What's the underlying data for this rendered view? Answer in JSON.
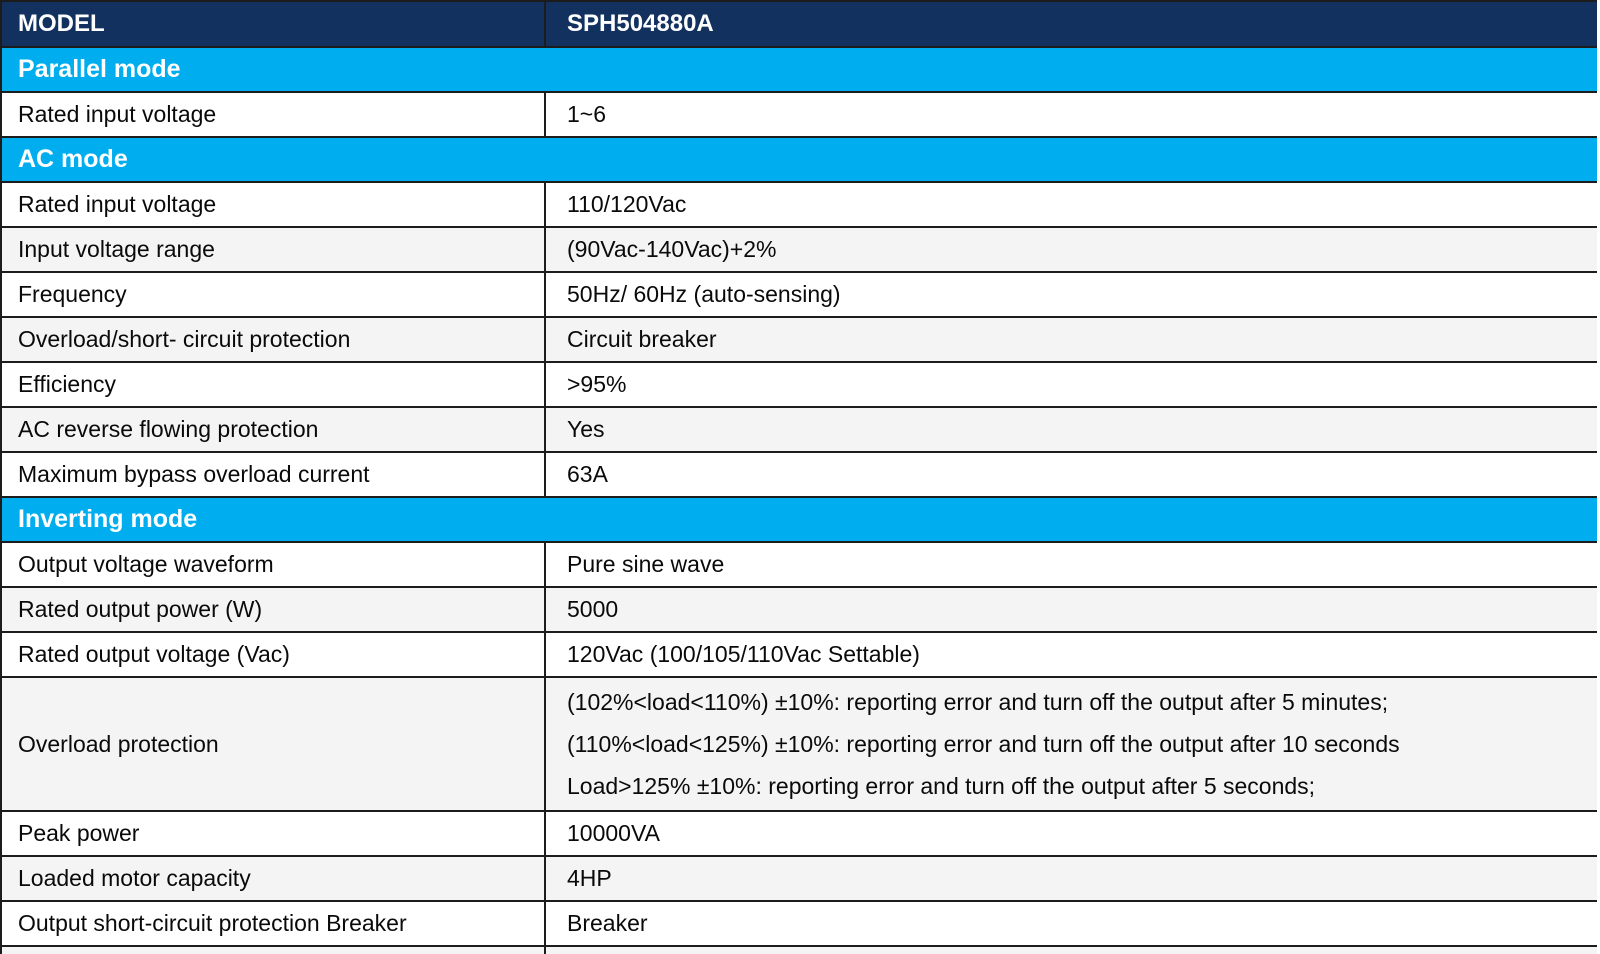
{
  "colors": {
    "header_bg": "#12315f",
    "section_bg": "#00aeef",
    "alt_row_bg": "#f4f4f4",
    "row_bg": "#ffffff",
    "border": "#1c1c1c",
    "text": "#0a0a0a",
    "header_text": "#ffffff"
  },
  "table": {
    "header": {
      "col1": "MODEL",
      "col2": "SPH504880A"
    },
    "rows": [
      {
        "type": "section",
        "label": "Parallel mode"
      },
      {
        "type": "data",
        "shade": "white",
        "label": "Rated input voltage",
        "value": "1~6"
      },
      {
        "type": "section",
        "label": "AC mode"
      },
      {
        "type": "data",
        "shade": "white",
        "label": "Rated input voltage",
        "value": "110/120Vac"
      },
      {
        "type": "data",
        "shade": "gray",
        "label": "Input voltage range",
        "value": "(90Vac-140Vac)+2%"
      },
      {
        "type": "data",
        "shade": "white",
        "label": "Frequency",
        "value": "50Hz/ 60Hz (auto-sensing)"
      },
      {
        "type": "data",
        "shade": "gray",
        "label": "Overload/short- circuit protection",
        "value": "Circuit breaker"
      },
      {
        "type": "data",
        "shade": "white",
        "label": "Efficiency",
        "value": ">95%"
      },
      {
        "type": "data",
        "shade": "gray",
        "label": "AC reverse flowing protection",
        "value": "Yes"
      },
      {
        "type": "data",
        "shade": "white",
        "label": "Maximum bypass overload current",
        "value": "63A"
      },
      {
        "type": "section",
        "label": "Inverting mode"
      },
      {
        "type": "data",
        "shade": "white",
        "label": "Output voltage waveform",
        "value": "Pure sine wave"
      },
      {
        "type": "data",
        "shade": "gray",
        "label": "Rated output power (W)",
        "value": "5000"
      },
      {
        "type": "data",
        "shade": "white",
        "label": "Rated output voltage (Vac)",
        "value": "120Vac (100/105/110Vac Settable)"
      },
      {
        "type": "data",
        "shade": "gray",
        "label": "Overload protection",
        "value_lines": [
          "(102%<load<110%) ±10%: reporting error and turn off the output after 5 minutes;",
          "(110%<load<125%) ±10%: reporting error and turn off the output after 10 seconds",
          "Load>125% ±10%: reporting error and turn off the output after 5 seconds;"
        ]
      },
      {
        "type": "data",
        "shade": "white",
        "label": "Peak power",
        "value": "10000VA"
      },
      {
        "type": "data",
        "shade": "gray",
        "label": "Loaded motor capacity",
        "value": "4HP"
      },
      {
        "type": "data",
        "shade": "white",
        "label": "Output short-circuit protection Breaker",
        "value": "Breaker"
      },
      {
        "type": "partial",
        "shade": "gray"
      }
    ]
  }
}
